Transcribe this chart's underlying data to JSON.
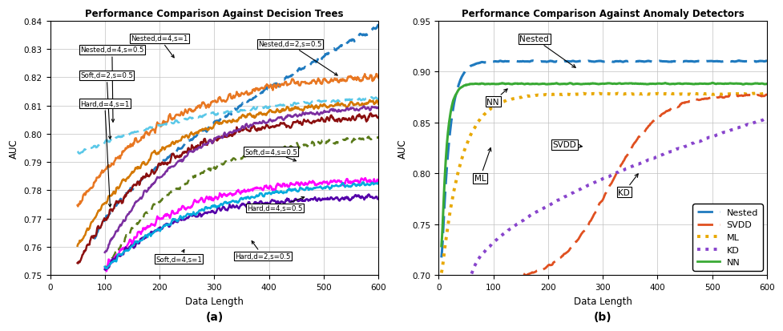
{
  "plot_a": {
    "title": "Performance Comparison Against Decision Trees",
    "xlabel": "Data Length",
    "ylabel": "AUC",
    "xlim": [
      0,
      600
    ],
    "ylim": [
      0.75,
      0.84
    ],
    "yticks": [
      0.75,
      0.76,
      0.77,
      0.78,
      0.79,
      0.8,
      0.81,
      0.82,
      0.83,
      0.84
    ],
    "xticks": [
      0,
      100,
      200,
      300,
      400,
      500,
      600
    ],
    "xlabel_bottom": "(a)"
  },
  "plot_b": {
    "title": "Performance Comparison Against Anomaly Detectors",
    "xlabel": "Data Length",
    "ylabel": "AUC",
    "xlim": [
      0,
      600
    ],
    "ylim": [
      0.7,
      0.95
    ],
    "yticks": [
      0.7,
      0.75,
      0.8,
      0.85,
      0.9,
      0.95
    ],
    "xticks": [
      0,
      100,
      200,
      300,
      400,
      500,
      600
    ],
    "xlabel_bottom": "(b)"
  }
}
